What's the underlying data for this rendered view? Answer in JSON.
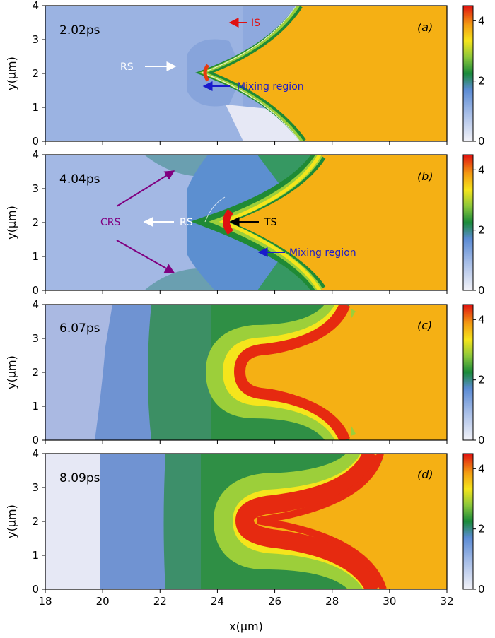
{
  "chart_data": {
    "type": "heatmap",
    "xlabel": "x(μm)",
    "ylabel": "y(μm)",
    "xlim": [
      18,
      32
    ],
    "ylim": [
      0,
      4
    ],
    "x_ticks": [
      "18",
      "20",
      "22",
      "24",
      "26",
      "28",
      "30",
      "32"
    ],
    "y_ticks": [
      "0",
      "1",
      "2",
      "3",
      "4"
    ],
    "colorbar": {
      "range": [
        0,
        4.5
      ],
      "tick_labels": [
        "0",
        "2",
        "4"
      ],
      "colormap": [
        "#f2f2f8",
        "#5b8bd4",
        "#1a8a3a",
        "#f5e51c",
        "#f39c12",
        "#e01010"
      ]
    },
    "panels": [
      {
        "id": "a",
        "label": "(a)",
        "time": "2.02ps",
        "annotations": [
          {
            "text": "IS",
            "color": "#e01010"
          },
          {
            "text": "RS",
            "color": "#ffffff"
          },
          {
            "text": "Mixing region",
            "color": "#1a1acc"
          }
        ]
      },
      {
        "id": "b",
        "label": "(b)",
        "time": "4.04ps",
        "annotations": [
          {
            "text": "CRS",
            "color": "#800080"
          },
          {
            "text": "RS",
            "color": "#ffffff"
          },
          {
            "text": "TS",
            "color": "#000000"
          },
          {
            "text": "Mixing region",
            "color": "#1a1acc"
          }
        ]
      },
      {
        "id": "c",
        "label": "(c)",
        "time": "6.07ps",
        "annotations": []
      },
      {
        "id": "d",
        "label": "(d)",
        "time": "8.09ps",
        "annotations": []
      }
    ]
  }
}
